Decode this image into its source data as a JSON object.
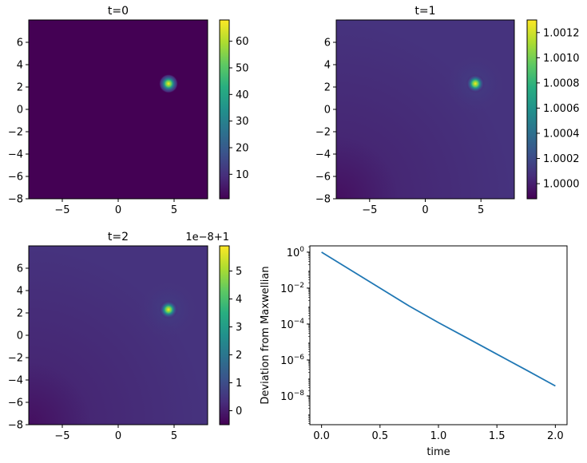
{
  "chart_data": [
    {
      "type": "heatmap",
      "title": "t=0",
      "xlim": [
        -8,
        8
      ],
      "ylim": [
        -8,
        8
      ],
      "xticks": [
        -5,
        0,
        5
      ],
      "xtick_labels": [
        "−5",
        "0",
        "5"
      ],
      "yticks": [
        -8,
        -6,
        -4,
        -2,
        0,
        2,
        4,
        6
      ],
      "ytick_labels": [
        "−8",
        "−6",
        "−4",
        "−2",
        "0",
        "2",
        "4",
        "6"
      ],
      "peak": {
        "x": 4.5,
        "y": 2.3
      },
      "colorbar": {
        "min": 0.8,
        "max": 68,
        "ticks": [
          10,
          20,
          30,
          40,
          50,
          60
        ],
        "tick_labels": [
          "10",
          "20",
          "30",
          "40",
          "50",
          "60"
        ],
        "offset_text": ""
      },
      "colormap": "viridis"
    },
    {
      "type": "heatmap",
      "title": "t=1",
      "xlim": [
        -8,
        8
      ],
      "ylim": [
        -8,
        8
      ],
      "xticks": [
        -5,
        0,
        5
      ],
      "xtick_labels": [
        "−5",
        "0",
        "5"
      ],
      "yticks": [
        -8,
        -6,
        -4,
        -2,
        0,
        2,
        4,
        6
      ],
      "ytick_labels": [
        "−8",
        "−6",
        "−4",
        "−2",
        "0",
        "2",
        "4",
        "6"
      ],
      "peak": {
        "x": 4.5,
        "y": 2.3
      },
      "colorbar": {
        "min": 0.99988,
        "max": 1.0013,
        "ticks": [
          1.0,
          1.0002,
          1.0004,
          1.0006,
          1.0008,
          1.001,
          1.0012
        ],
        "tick_labels": [
          "1.0000",
          "1.0002",
          "1.0004",
          "1.0006",
          "1.0008",
          "1.0010",
          "1.0012"
        ],
        "offset_text": ""
      },
      "colormap": "viridis"
    },
    {
      "type": "heatmap",
      "title": "t=2",
      "xlim": [
        -8,
        8
      ],
      "ylim": [
        -8,
        8
      ],
      "xticks": [
        -5,
        0,
        5
      ],
      "xtick_labels": [
        "−5",
        "0",
        "5"
      ],
      "yticks": [
        -8,
        -6,
        -4,
        -2,
        0,
        2,
        4,
        6
      ],
      "ytick_labels": [
        "−8",
        "−6",
        "−4",
        "−2",
        "0",
        "2",
        "4",
        "6"
      ],
      "peak": {
        "x": 4.5,
        "y": 2.3
      },
      "colorbar": {
        "min": -0.5,
        "max": 5.9,
        "ticks": [
          0,
          1,
          2,
          3,
          4,
          5
        ],
        "tick_labels": [
          "0",
          "1",
          "2",
          "3",
          "4",
          "5"
        ],
        "offset_text": "1e−8+1"
      },
      "colormap": "viridis"
    },
    {
      "type": "line",
      "title": "",
      "xlabel": "time",
      "ylabel": "Deviation from Maxwellian",
      "yscale": "log",
      "xlim": [
        -0.1,
        2.1
      ],
      "ylim_log10": [
        -9.6,
        0.35
      ],
      "xticks": [
        0,
        0.5,
        1,
        1.5,
        2
      ],
      "xtick_labels": [
        "0.0",
        "0.5",
        "1.0",
        "1.5",
        "2.0"
      ],
      "yticks_log10": [
        -8,
        -6,
        -4,
        -2,
        0
      ],
      "ytick_labels": [
        {
          "base": "10",
          "exp": "−8"
        },
        {
          "base": "10",
          "exp": "−6"
        },
        {
          "base": "10",
          "exp": "−4"
        },
        {
          "base": "10",
          "exp": "−2"
        },
        {
          "base": "10",
          "exp": "0"
        }
      ],
      "series": [
        {
          "color": "#1f77b4",
          "x": [
            0,
            0.25,
            0.5,
            0.75,
            1.0,
            1.25,
            1.5,
            1.75,
            2.0
          ],
          "y": [
            1.0,
            0.1,
            0.01,
            0.001,
            0.00012,
            1.6e-05,
            2.1e-06,
            2.8e-07,
            3.6e-08
          ]
        }
      ]
    }
  ]
}
